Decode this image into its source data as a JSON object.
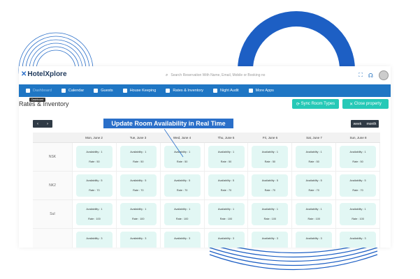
{
  "app": {
    "name": "HotelXplore"
  },
  "search": {
    "placeholder": "Search Reservation With Name, Email, Mobile or Booking no"
  },
  "nav": {
    "items": [
      {
        "label": "Dashboard",
        "active": true
      },
      {
        "label": "Calendar"
      },
      {
        "label": "Guests"
      },
      {
        "label": "House Keeping"
      },
      {
        "label": "Rates & Inventory"
      },
      {
        "label": "Night Audit"
      },
      {
        "label": "More Apps"
      }
    ],
    "tooltip": "Dashboard"
  },
  "page": {
    "title": "Rates & Inventory"
  },
  "buttons": {
    "sync": "Sync Room Types",
    "close": "Close property"
  },
  "banner": "Update Room Availability in Real Time",
  "view_toggle": {
    "week": "week",
    "month": "month"
  },
  "days": [
    "Mon, June 2",
    "Tue, June 3",
    "Wed, June 4",
    "Thu, June 5",
    "Fri, June 6",
    "Sat, June 7",
    "Sun, June 8"
  ],
  "rooms": [
    {
      "name": "NSK",
      "availability": "Availability : 1",
      "rate": "Rate : 50"
    },
    {
      "name": "NK2",
      "availability": "Availability : 5",
      "rate": "Rate : 70"
    },
    {
      "name": "SuI",
      "availability": "Availability : 1",
      "rate": "Rate : 100"
    },
    {
      "name": "",
      "availability": "Availability : 3",
      "rate": ""
    }
  ],
  "colors": {
    "primary": "#1f76c4",
    "accent": "#26c9b7",
    "pill": "#e2f7f4"
  }
}
